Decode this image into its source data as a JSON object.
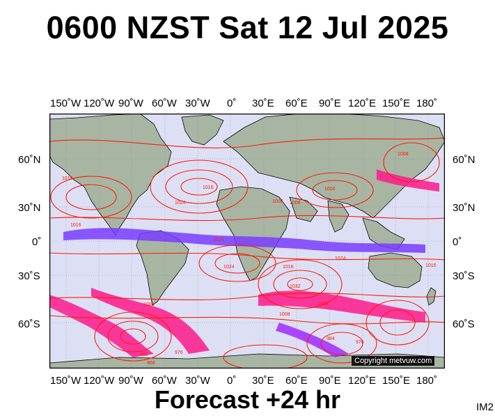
{
  "title": "0600 NZST Sat 12 Jul 2025",
  "forecast": "Forecast +24 hr",
  "code": "IM2",
  "copyright": "Copyright metvuw.com",
  "lon_labels": [
    "150˚W",
    "120˚W",
    "90˚W",
    "60˚W",
    "30˚W",
    "0˚",
    "30˚E",
    "60˚E",
    "90˚E",
    "120˚E",
    "150˚E",
    "180˚"
  ],
  "lat_labels_left": [
    "60˚N",
    "30˚N",
    "0˚",
    "30˚S",
    "60˚S"
  ],
  "lat_labels_right": [
    "60˚N",
    "30˚N",
    "0˚",
    "30˚S",
    "60˚S"
  ],
  "isobar_labels": [
    "1016",
    "1024",
    "1016",
    "1016",
    "1008",
    "1008",
    "1016",
    "1024",
    "1016",
    "1032",
    "1008",
    "1000",
    "1008",
    "976",
    "968",
    "984",
    "976",
    "960",
    "1000",
    "1008",
    "1016",
    "1024"
  ],
  "colors": {
    "ocean": "#dde0f5",
    "land": "#a8b5a3",
    "isobar": "#ff1a00",
    "precip_heavy": "#ff1a8c",
    "precip_mid": "#a02cff",
    "precip_light": "#7a3cff"
  }
}
